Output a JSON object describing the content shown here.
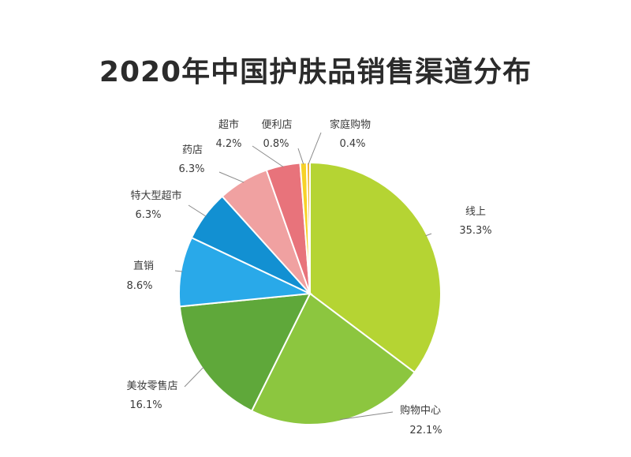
{
  "chart_data": {
    "type": "pie",
    "title": "2020年中国护肤品销售渠道分布",
    "slices": [
      {
        "label": "线上",
        "value": 35.3,
        "text": "35.3%",
        "color": "#b5d433"
      },
      {
        "label": "购物中心",
        "value": 22.1,
        "text": "22.1%",
        "color": "#8cc63f"
      },
      {
        "label": "美妆零售店",
        "value": 16.1,
        "text": "16.1%",
        "color": "#5fa83a"
      },
      {
        "label": "直销",
        "value": 8.6,
        "text": "8.6%",
        "color": "#29a9e9"
      },
      {
        "label": "特大型超市",
        "value": 6.3,
        "text": "6.3%",
        "color": "#1290d2"
      },
      {
        "label": "药店",
        "value": 6.3,
        "text": "6.3%",
        "color": "#f0a1a1"
      },
      {
        "label": "超市",
        "value": 4.2,
        "text": "4.2%",
        "color": "#e8737b"
      },
      {
        "label": "便利店",
        "value": 0.8,
        "text": "0.8%",
        "color": "#f7d229"
      },
      {
        "label": "家庭购物",
        "value": 0.4,
        "text": "0.4%",
        "color": "#f2b630"
      }
    ]
  }
}
